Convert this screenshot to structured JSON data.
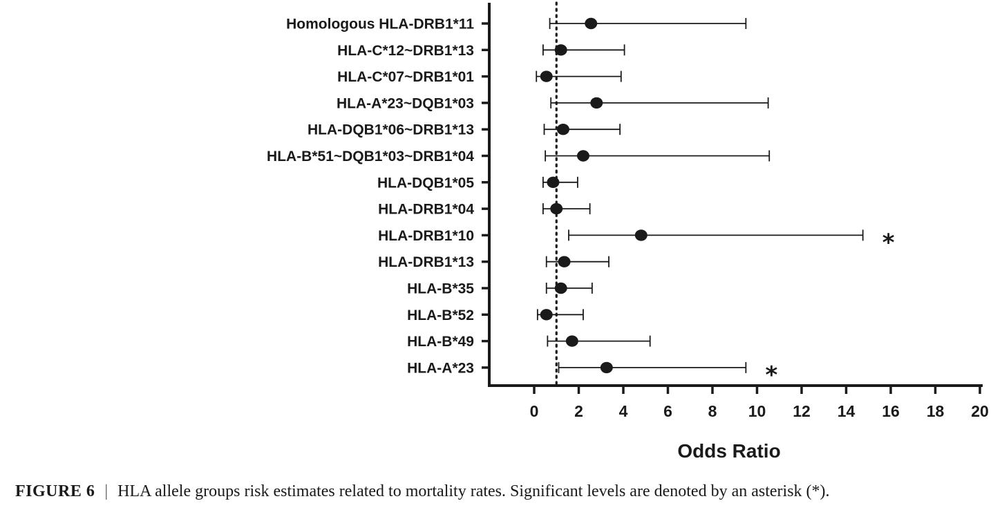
{
  "chart_data": {
    "type": "forest",
    "xlabel": "Odds Ratio",
    "xlim": [
      -2,
      20
    ],
    "xticks": [
      0,
      2,
      4,
      6,
      8,
      10,
      12,
      14,
      16,
      18,
      20
    ],
    "reference_line": 1,
    "grid": false,
    "colors": {
      "ink": "#1a1a1a"
    },
    "rows": [
      {
        "label": "Homologous HLA-DRB1*11",
        "or": 2.55,
        "lower": 0.7,
        "upper": 9.5,
        "significant": false
      },
      {
        "label": "HLA-C*12~DRB1*13",
        "or": 1.2,
        "lower": 0.4,
        "upper": 4.05,
        "significant": false
      },
      {
        "label": "HLA-C*07~DRB1*01",
        "or": 0.55,
        "lower": 0.1,
        "upper": 3.9,
        "significant": false
      },
      {
        "label": "HLA-A*23~DQB1*03",
        "or": 2.8,
        "lower": 0.75,
        "upper": 10.5,
        "significant": false
      },
      {
        "label": "HLA-DQB1*06~DRB1*13",
        "or": 1.3,
        "lower": 0.45,
        "upper": 3.85,
        "significant": false
      },
      {
        "label": "HLA-B*51~DQB1*03~DRB1*04",
        "or": 2.2,
        "lower": 0.5,
        "upper": 10.55,
        "significant": false
      },
      {
        "label": "HLA-DQB1*05",
        "or": 0.85,
        "lower": 0.4,
        "upper": 1.95,
        "significant": false
      },
      {
        "label": "HLA-DRB1*04",
        "or": 1.0,
        "lower": 0.4,
        "upper": 2.5,
        "significant": false
      },
      {
        "label": "HLA-DRB1*10",
        "or": 4.8,
        "lower": 1.55,
        "upper": 14.75,
        "significant": true
      },
      {
        "label": "HLA-DRB1*13",
        "or": 1.35,
        "lower": 0.55,
        "upper": 3.35,
        "significant": false
      },
      {
        "label": "HLA-B*35",
        "or": 1.2,
        "lower": 0.55,
        "upper": 2.6,
        "significant": false
      },
      {
        "label": "HLA-B*52",
        "or": 0.55,
        "lower": 0.15,
        "upper": 2.2,
        "significant": false
      },
      {
        "label": "HLA-B*49",
        "or": 1.7,
        "lower": 0.6,
        "upper": 5.2,
        "significant": false
      },
      {
        "label": "HLA-A*23",
        "or": 3.25,
        "lower": 1.1,
        "upper": 9.5,
        "significant": true
      }
    ],
    "significance_symbol": "*"
  },
  "caption": {
    "figure_label": "FIGURE 6",
    "separator": "|",
    "text": "HLA allele groups risk estimates related to mortality rates. Significant levels are denoted by an asterisk (*)."
  }
}
